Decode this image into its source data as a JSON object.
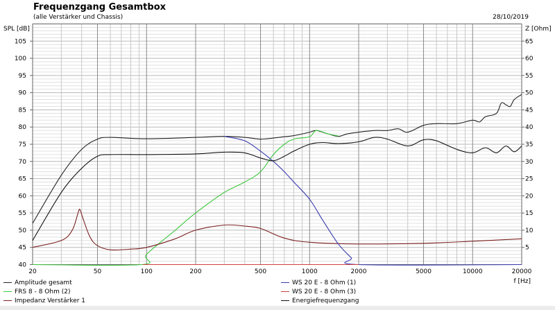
{
  "chart_data": {
    "type": "line",
    "title": "Frequenzgang Gesamtbox",
    "subtitle": "(alle Verstärker und Chassis)",
    "date": "28/10/2019",
    "xlabel": "f [Hz]",
    "ylabel": "SPL [dB]",
    "y2label": "Z [Ohm]",
    "xscale": "log",
    "xlim": [
      20,
      20000
    ],
    "ylim": [
      40,
      110
    ],
    "y2lim": [
      0,
      70
    ],
    "grid": true,
    "legend_position": "bottom",
    "x_ticks": [
      20,
      50,
      100,
      200,
      500,
      1000,
      2000,
      5000,
      10000,
      20000
    ],
    "y_ticks": [
      40,
      45,
      50,
      55,
      60,
      65,
      70,
      75,
      80,
      85,
      90,
      95,
      100,
      105
    ],
    "y2_ticks": [
      5,
      10,
      15,
      20,
      25,
      30,
      35,
      40,
      45,
      50,
      55,
      60,
      65
    ],
    "series": [
      {
        "name": "Amplitude gesamt",
        "color": "#222222",
        "axis": "left",
        "x": [
          20,
          30,
          40,
          50,
          60,
          100,
          200,
          300,
          400,
          500,
          600,
          700,
          800,
          1000,
          1100,
          1300,
          1500,
          1700,
          2000,
          2500,
          3000,
          3500,
          4000,
          5000,
          6000,
          8000,
          10000,
          11000,
          12000,
          14000,
          15000,
          16000,
          17000,
          18000,
          20000
        ],
        "y": [
          52,
          66,
          73.5,
          76.5,
          77,
          76.6,
          77,
          77.3,
          77,
          76.5,
          76.8,
          77.2,
          77.5,
          78.5,
          79,
          78,
          77.3,
          78,
          78.5,
          79,
          79,
          79.5,
          78.5,
          80.5,
          81,
          81,
          82,
          81.5,
          83,
          84,
          87,
          86.5,
          86,
          88,
          89.5
        ]
      },
      {
        "name": "FRS 8 - 8 Ohm (2)",
        "color": "#3ec83e",
        "axis": "left",
        "x": [
          20,
          93,
          100,
          150,
          200,
          300,
          400,
          500,
          600,
          700,
          800,
          1000,
          1100,
          1300,
          1500
        ],
        "y": [
          40,
          40,
          43,
          50,
          55,
          61,
          64,
          67,
          72,
          75,
          76.5,
          77.2,
          79,
          78,
          77.4
        ]
      },
      {
        "name": "Impedanz Verstärker 1",
        "color": "#7a2020",
        "axis": "right",
        "x": [
          20,
          30,
          35,
          38,
          39,
          41,
          45,
          50,
          60,
          80,
          100,
          150,
          200,
          300,
          400,
          500,
          700,
          1000,
          2000,
          5000,
          10000,
          20000
        ],
        "y": [
          5,
          7,
          10,
          15,
          16,
          13,
          8,
          5.5,
          4.3,
          4.5,
          5,
          7.5,
          10,
          11.5,
          11.2,
          10.5,
          7.7,
          6.5,
          6,
          6.2,
          6.8,
          7.5
        ]
      },
      {
        "name": "WS 20 E - 8 Ohm  (1)",
        "color": "#3a3ab0",
        "axis": "left",
        "x": [
          300,
          400,
          500,
          600,
          700,
          800,
          1000,
          1200,
          1500,
          1800,
          2000,
          20000
        ],
        "y": [
          77.3,
          76,
          73,
          70,
          67,
          64,
          59,
          53,
          46,
          42,
          40,
          40
        ]
      },
      {
        "name": "WS 20 E - 8 Ohm  (3)",
        "color": "#d04040",
        "axis": "left",
        "x": [
          95,
          2000
        ],
        "y": [
          40,
          40
        ]
      },
      {
        "name": "Energiefrequenzgang",
        "color": "#111111",
        "axis": "left",
        "x": [
          20,
          30,
          40,
          50,
          60,
          100,
          200,
          300,
          400,
          500,
          600,
          700,
          800,
          1000,
          1200,
          1500,
          2000,
          2500,
          3000,
          4000,
          5000,
          6000,
          8000,
          10000,
          12000,
          14000,
          16000,
          18000,
          20000
        ],
        "y": [
          47,
          61,
          68,
          71.5,
          72,
          72,
          72.2,
          72.7,
          72.5,
          71,
          70.2,
          71.5,
          73,
          75,
          75.5,
          75.2,
          75.7,
          77,
          76.5,
          74.5,
          76.3,
          76,
          73.5,
          72.5,
          74,
          72.5,
          74.5,
          72.8,
          74.5
        ]
      }
    ]
  }
}
